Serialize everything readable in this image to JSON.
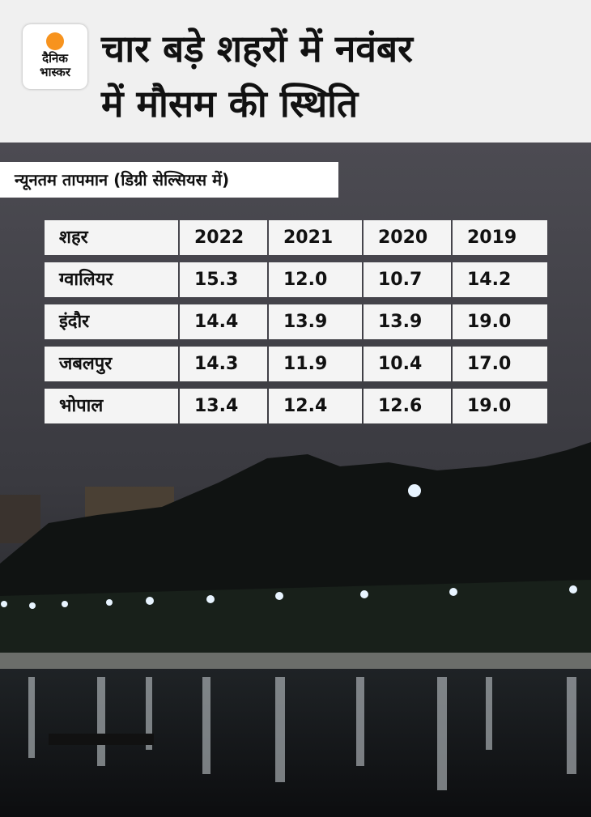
{
  "header": {
    "logo": [
      "दैनिक",
      "भास्कर"
    ],
    "title": [
      "चार बड़े शहरों में नवंबर",
      "में मौसम की स्थिति"
    ]
  },
  "subtitle": "न्यूनतम तापमान (डिग्री सेल्सियस में)",
  "table": {
    "columns": [
      "शहर",
      "2022",
      "2021",
      "2020",
      "2019"
    ],
    "rows": [
      [
        "ग्वालियर",
        "15.3",
        "12.0",
        "10.7",
        "14.2"
      ],
      [
        "इंदौर",
        "14.4",
        "13.9",
        "13.9",
        "19.0"
      ],
      [
        "जबलपुर",
        "14.3",
        "11.9",
        "10.4",
        "17.0"
      ],
      [
        "भोपाल",
        "13.4",
        "12.4",
        "12.6",
        "19.0"
      ]
    ]
  }
}
